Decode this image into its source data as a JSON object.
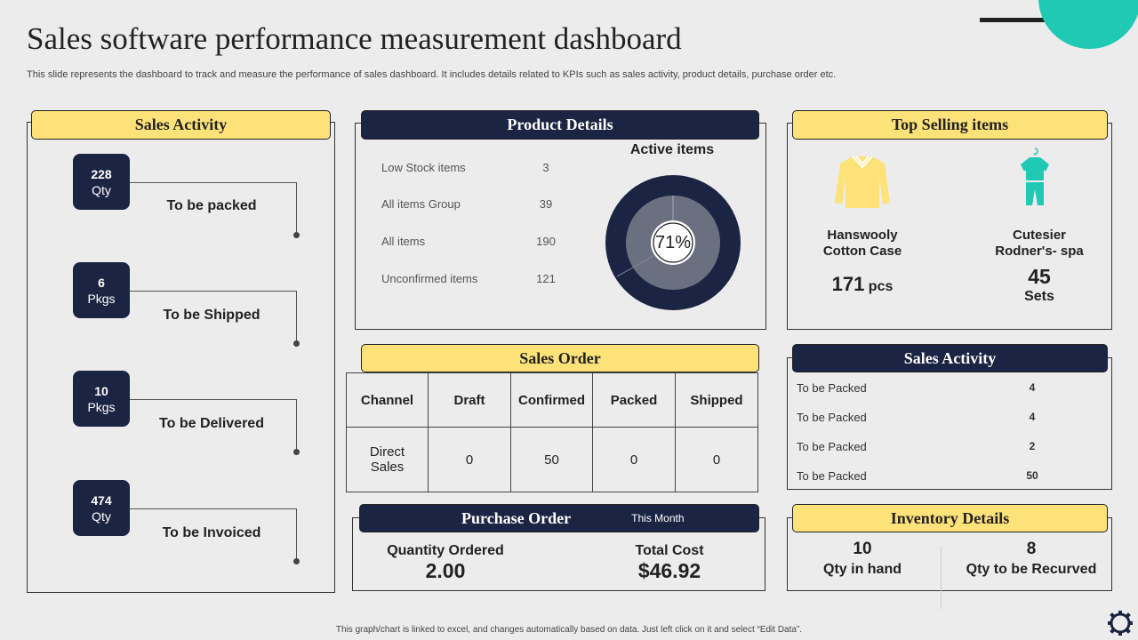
{
  "title": "Sales software performance measurement dashboard",
  "subtitle": "This slide represents the dashboard to track and measure the performance of sales dashboard. It includes details related to KPIs such as sales activity, product details, purchase order etc.",
  "sales_activity": {
    "title": "Sales Activity",
    "items": [
      {
        "value": "228",
        "unit": "Qty",
        "label": "To be packed"
      },
      {
        "value": "6",
        "unit": "Pkgs",
        "label": "To be Shipped"
      },
      {
        "value": "10",
        "unit": "Pkgs",
        "label": "To be Delivered"
      },
      {
        "value": "474",
        "unit": "Qty",
        "label": "To be Invoiced"
      }
    ]
  },
  "product_details": {
    "title": "Product Details",
    "rows": [
      {
        "label": "Low Stock items",
        "value": "3"
      },
      {
        "label": "All items Group",
        "value": "39"
      },
      {
        "label": "All items",
        "value": "190"
      },
      {
        "label": "Unconfirmed  items",
        "value": "121"
      }
    ],
    "active_title": "Active items",
    "active_percent": "71%",
    "active_fraction": 0.71
  },
  "top_selling": {
    "title": "Top Selling items",
    "items": [
      {
        "name_line1": "Hanswooly",
        "name_line2": "Cotton Case",
        "value": "171",
        "unit": "pcs",
        "icon": "shirt-icon"
      },
      {
        "name_line1": "Cutesier",
        "name_line2": "Rodner's- spa",
        "value": "45",
        "unit": "Sets",
        "icon": "pajama-icon"
      }
    ]
  },
  "sales_order": {
    "title": "Sales Order",
    "headers": [
      "Channel",
      "Draft",
      "Confirmed",
      "Packed",
      "Shipped"
    ],
    "row": {
      "channel_1": "Direct",
      "channel_2": "Sales",
      "draft": "0",
      "confirmed": "50",
      "packed": "0",
      "shipped": "0"
    }
  },
  "sales_activity_2": {
    "title": "Sales Activity",
    "rows": [
      {
        "label": "To be Packed",
        "value": "4"
      },
      {
        "label": "To be Packed",
        "value": "4"
      },
      {
        "label": "To be Packed",
        "value": "2"
      },
      {
        "label": "To be Packed",
        "value": "50"
      }
    ]
  },
  "purchase_order": {
    "title": "Purchase Order",
    "period": "This Month",
    "qty_label": "Quantity Ordered",
    "qty_value": "2.00",
    "cost_label": "Total Cost",
    "cost_value": "$46.92"
  },
  "inventory": {
    "title": "Inventory Details",
    "in_hand_value": "10",
    "in_hand_label": "Qty in hand",
    "recurved_value": "8",
    "recurved_label": "Qty to be Recurved"
  },
  "footer": "This graph/chart is linked to excel, and changes automatically based on data. Just left click on it and select “Edit Data”.",
  "colors": {
    "navy": "#1c2443",
    "yellow": "#fde27a",
    "teal": "#1fc9b4",
    "gray": "#6b7080"
  }
}
